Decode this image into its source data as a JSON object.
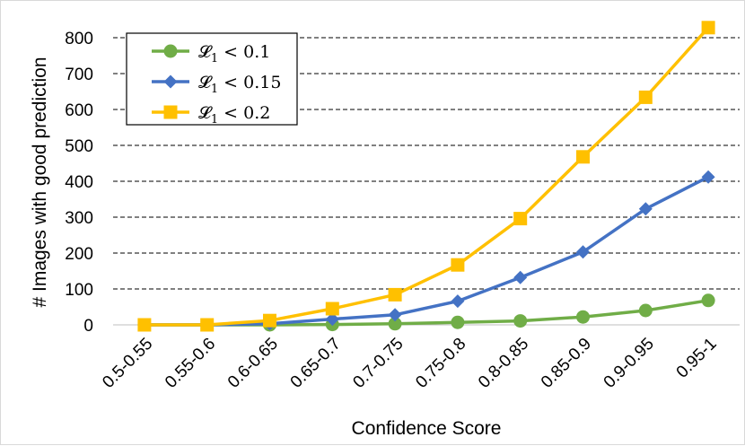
{
  "chart_data": {
    "type": "line",
    "title": "",
    "xlabel": "Confidence Score",
    "ylabel": "# Images with good prediction",
    "categories": [
      "0.5-0.55",
      "0.55-0.6",
      "0.6-0.65",
      "0.65-0.7",
      "0.7-0.75",
      "0.75-0.8",
      "0.8-0.85",
      "0.85-0.9",
      "0.9-0.95",
      "0.95-1"
    ],
    "ylim": [
      0,
      800
    ],
    "yticks": [
      0,
      100,
      200,
      300,
      400,
      500,
      600,
      700,
      800
    ],
    "grid": "horizontal dashed",
    "legend_position": "top-left",
    "series": [
      {
        "name": "𝓛",
        "subscript": "1",
        "suffix": " < 0.1",
        "color": "#70AD47",
        "marker": "circle",
        "values": [
          0,
          0,
          0,
          1,
          3,
          7,
          11,
          22,
          40,
          68
        ]
      },
      {
        "name": "𝓛",
        "subscript": "1",
        "suffix": " < 0.15",
        "color": "#4472C4",
        "marker": "diamond",
        "values": [
          0,
          0,
          3,
          16,
          28,
          66,
          132,
          203,
          323,
          412
        ]
      },
      {
        "name": "𝓛",
        "subscript": "1",
        "suffix": " < 0.2",
        "color": "#FFC000",
        "marker": "square",
        "values": [
          0,
          0,
          12,
          45,
          84,
          167,
          296,
          468,
          634,
          828
        ]
      }
    ]
  }
}
